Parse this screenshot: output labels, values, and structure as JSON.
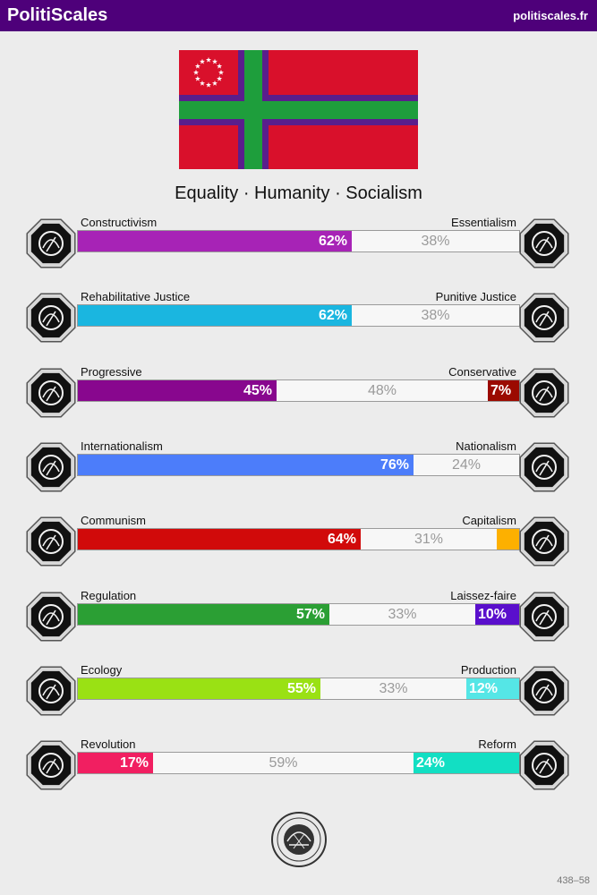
{
  "header": {
    "brand": "PolitiScales",
    "site": "politiscales.fr"
  },
  "flag": {
    "field_color": "#d9102b",
    "cross_color": "#1e9e3c",
    "cross_border_color": "#5a1e8c",
    "canton_color": "#d9102b",
    "stars_color": "#ffffff",
    "star_count": 12
  },
  "slogan": "Equality · Humanity · Socialism",
  "axes": [
    {
      "left": "Constructivism",
      "right": "Essentialism",
      "left_pct": 62,
      "mid_pct": 38,
      "right_pct": 0,
      "left_label": "62%",
      "mid_label": "38%",
      "right_label": "",
      "left_color": "#a723b6",
      "right_color": "#9a9a9a",
      "left_icon": "spiral-mind-icon",
      "right_icon": "flower-burst-icon"
    },
    {
      "left": "Rehabilitative Justice",
      "right": "Punitive Justice",
      "left_pct": 62,
      "mid_pct": 38,
      "right_pct": 0,
      "left_label": "62%",
      "mid_label": "38%",
      "right_label": "",
      "left_color": "#1ab6e0",
      "right_color": "#9a9a9a",
      "left_icon": "handshake-icon",
      "right_icon": "prison-bars-icon"
    },
    {
      "left": "Progressive",
      "right": "Conservative",
      "left_pct": 45,
      "mid_pct": 48,
      "right_pct": 7,
      "left_label": "45%",
      "mid_label": "48%",
      "right_label": "7%",
      "left_color": "#88078e",
      "right_color": "#9b0a00",
      "left_icon": "torch-hand-icon",
      "right_icon": "quill-scroll-icon"
    },
    {
      "left": "Internationalism",
      "right": "Nationalism",
      "left_pct": 76,
      "mid_pct": 24,
      "right_pct": 0,
      "left_label": "76%",
      "mid_label": "24%",
      "right_label": "",
      "left_color": "#4c7dfa",
      "right_color": "#9a9a9a",
      "left_icon": "globe-laurel-icon",
      "right_icon": "waving-flag-icon"
    },
    {
      "left": "Communism",
      "right": "Capitalism",
      "left_pct": 64,
      "mid_pct": 31,
      "right_pct": 5,
      "left_label": "64%",
      "mid_label": "31%",
      "right_label": "",
      "left_color": "#d10a0a",
      "right_color": "#fdb000",
      "left_icon": "hammer-sickle-icon",
      "right_icon": "money-bag-icon"
    },
    {
      "left": "Regulation",
      "right": "Laissez-faire",
      "left_pct": 57,
      "mid_pct": 33,
      "right_pct": 10,
      "left_label": "57%",
      "mid_label": "33%",
      "right_label": "10%",
      "left_color": "#2b9f34",
      "right_color": "#5a0fcc",
      "left_icon": "ruler-gear-icon",
      "right_icon": "butterflies-icon"
    },
    {
      "left": "Ecology",
      "right": "Production",
      "left_pct": 55,
      "mid_pct": 33,
      "right_pct": 12,
      "left_label": "55%",
      "mid_label": "33%",
      "right_label": "12%",
      "left_color": "#9ae114",
      "right_color": "#55e6e6",
      "left_icon": "sprout-icon",
      "right_icon": "factory-gear-icon"
    },
    {
      "left": "Revolution",
      "right": "Reform",
      "left_pct": 17,
      "mid_pct": 59,
      "right_pct": 24,
      "left_label": "17%",
      "mid_label": "59%",
      "right_label": "24%",
      "left_color": "#f11f61",
      "right_color": "#12dfc3",
      "left_icon": "raised-fist-icon",
      "right_icon": "parliament-icon"
    }
  ],
  "seal_icon": "seal-icon",
  "code": "438–58"
}
